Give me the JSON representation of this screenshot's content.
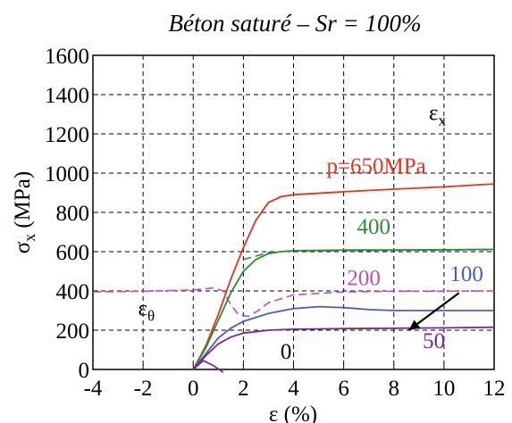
{
  "chart_data": {
    "type": "line",
    "title": "Béton saturé – Sr = 100%",
    "xlabel": "ε (%)",
    "ylabel_main": "σ",
    "ylabel_sub": "x",
    "ylabel_unit": "(MPa)",
    "xlim": [
      -4,
      12
    ],
    "ylim": [
      0,
      1600
    ],
    "xticks": [
      -4,
      -2,
      0,
      2,
      4,
      6,
      8,
      10,
      12
    ],
    "yticks": [
      0,
      200,
      400,
      600,
      800,
      1000,
      1200,
      1400,
      1600
    ],
    "grid": true,
    "series": [
      {
        "name": "p=650MPa",
        "color": "#e8321e",
        "x": [
          0,
          0.5,
          1.0,
          1.5,
          2.0,
          2.5,
          3.0,
          3.5,
          4.0,
          6.0,
          8.0,
          10.0,
          12.0
        ],
        "y": [
          0,
          120,
          280,
          460,
          620,
          760,
          850,
          880,
          890,
          905,
          918,
          930,
          945
        ]
      },
      {
        "name": "400",
        "color": "#2e8b3a",
        "x": [
          0,
          0.5,
          1.0,
          1.5,
          2.0,
          2.5,
          3.0,
          3.5,
          4.0,
          6.0,
          8.0,
          10.0,
          12.0
        ],
        "y": [
          0,
          110,
          250,
          390,
          500,
          560,
          590,
          600,
          605,
          608,
          608,
          610,
          612
        ]
      },
      {
        "name": "100",
        "color": "#4a5cc4",
        "x": [
          0,
          0.5,
          1.0,
          1.5,
          2.0,
          3.0,
          4.0,
          5.0,
          6.0,
          7.0,
          8.0,
          10.0,
          12.0
        ],
        "y": [
          0,
          80,
          160,
          210,
          245,
          285,
          310,
          320,
          315,
          305,
          300,
          300,
          300
        ]
      },
      {
        "name": "50",
        "color": "#7a2a8a",
        "x": [
          0,
          0.5,
          1.0,
          1.5,
          2.0,
          3.0,
          4.0,
          6.0,
          8.0,
          10.0,
          12.0
        ],
        "y": [
          0,
          70,
          130,
          165,
          185,
          200,
          205,
          208,
          210,
          212,
          215
        ]
      },
      {
        "name": "0",
        "color": "#7a2a8a",
        "x": [
          0,
          0.4,
          0.8,
          1.2
        ],
        "y": [
          0,
          45,
          20,
          -15
        ]
      }
    ],
    "etheta_series": [
      {
        "name": "200",
        "color": "#c24fa8",
        "x": [
          -4,
          -2,
          0,
          0.8,
          1.2,
          1.5,
          1.8,
          2.2,
          2.6,
          3.0,
          4.0,
          6.0,
          8.0,
          10.0,
          12.0
        ],
        "y": [
          395,
          398,
          405,
          415,
          400,
          330,
          280,
          270,
          300,
          340,
          380,
          395,
          398,
          398,
          400
        ]
      },
      {
        "name": "400",
        "color": "#2e8b3a",
        "x": [
          2.0,
          3.0,
          4.0,
          6.0,
          8.0,
          10.0,
          12.0
        ],
        "y": [
          560,
          595,
          605,
          605,
          607,
          608,
          610
        ]
      }
    ],
    "annotations": [
      {
        "text": "p=650MPa",
        "color": "#e8321e",
        "x": 7.3,
        "y": 1000
      },
      {
        "text": "400",
        "color": "#2e8b3a",
        "x": 7.2,
        "y": 690
      },
      {
        "text": "200",
        "color": "#c24fa8",
        "x": 6.8,
        "y": 430
      },
      {
        "text": "100",
        "color": "#4a5cc4",
        "x": 10.9,
        "y": 450
      },
      {
        "text": "50",
        "color": "#7a2a8a",
        "x": 9.6,
        "y": 110
      },
      {
        "text": "0",
        "color": "#000000",
        "x": 3.7,
        "y": 55
      }
    ],
    "legend_labels": [
      {
        "main": "ε",
        "sub": "x",
        "x": 9.4,
        "y": 1270
      },
      {
        "main": "ε",
        "sub": "θ",
        "x": -2.2,
        "y": 275
      }
    ],
    "arrow": {
      "from": [
        10.6,
        390
      ],
      "to": [
        8.6,
        200
      ]
    }
  }
}
